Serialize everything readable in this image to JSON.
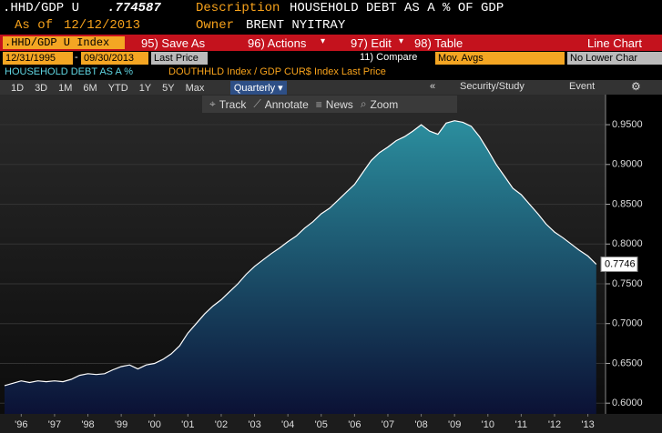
{
  "header": {
    "ticker": ".HHD/GDP U",
    "price": ".774587",
    "description_label": "Description",
    "description": "HOUSEHOLD DEBT AS A % OF GDP",
    "as_of_label": "As of",
    "as_of": "12/12/2013",
    "owner_label": "Owner",
    "owner": "BRENT NYITRAY"
  },
  "menu": {
    "security": ".HHD/GDP U Index",
    "items": [
      "95) Save As",
      "96) Actions",
      "97) Edit",
      "98) Table"
    ],
    "view": "Line Chart"
  },
  "settings": {
    "start": "12/31/1995",
    "separator": "-",
    "end": "09/30/2013",
    "field": "Last Price",
    "compare": "11) Compare",
    "mov_avgs": "Mov. Avgs",
    "lower": "No Lower Char"
  },
  "periods": [
    "1D",
    "3D",
    "1M",
    "6M",
    "YTD",
    "1Y",
    "5Y",
    "Max"
  ],
  "frequency": "Quarterly",
  "tools": [
    "Security/Study",
    "Event"
  ],
  "chart_tools": [
    "Track",
    "Annotate",
    "News",
    "Zoom"
  ],
  "chart_data": {
    "type": "area",
    "subtitle": "DOUTHHLD Index / GDP CUR$ Index Last Price",
    "x": [
      1996,
      1996.25,
      1996.5,
      1996.75,
      1997,
      1997.25,
      1997.5,
      1997.75,
      1998,
      1998.25,
      1998.5,
      1998.75,
      1999,
      1999.25,
      1999.5,
      1999.75,
      2000,
      2000.25,
      2000.5,
      2000.75,
      2001,
      2001.25,
      2001.5,
      2001.75,
      2002,
      2002.25,
      2002.5,
      2002.75,
      2003,
      2003.25,
      2003.5,
      2003.75,
      2004,
      2004.25,
      2004.5,
      2004.75,
      2005,
      2005.25,
      2005.5,
      2005.75,
      2006,
      2006.25,
      2006.5,
      2006.75,
      2007,
      2007.25,
      2007.5,
      2007.75,
      2008,
      2008.25,
      2008.5,
      2008.75,
      2009,
      2009.25,
      2009.5,
      2009.75,
      2010,
      2010.25,
      2010.5,
      2010.75,
      2011,
      2011.25,
      2011.5,
      2011.75,
      2012,
      2012.25,
      2012.5,
      2012.75,
      2013,
      2013.25,
      2013.5,
      2013.75
    ],
    "series": [
      {
        "name": "HOUSEHOLD DEBT AS A %",
        "color": "#2b8e9e",
        "line_color": "#ffffff",
        "values": [
          0.622,
          0.625,
          0.628,
          0.626,
          0.628,
          0.627,
          0.628,
          0.627,
          0.63,
          0.635,
          0.637,
          0.636,
          0.637,
          0.642,
          0.646,
          0.648,
          0.643,
          0.648,
          0.65,
          0.655,
          0.662,
          0.672,
          0.688,
          0.7,
          0.712,
          0.722,
          0.73,
          0.74,
          0.75,
          0.762,
          0.772,
          0.78,
          0.788,
          0.795,
          0.803,
          0.81,
          0.82,
          0.828,
          0.838,
          0.845,
          0.855,
          0.865,
          0.875,
          0.89,
          0.905,
          0.915,
          0.922,
          0.93,
          0.935,
          0.942,
          0.95,
          0.942,
          0.938,
          0.952,
          0.955,
          0.953,
          0.948,
          0.935,
          0.918,
          0.9,
          0.885,
          0.87,
          0.862,
          0.85,
          0.838,
          0.825,
          0.815,
          0.808,
          0.8,
          0.792,
          0.785,
          0.7746
        ]
      }
    ],
    "xlim": [
      1995.863,
      2014.03
    ],
    "xticks": [
      {
        "value": 1996.5,
        "label": "'96"
      },
      {
        "value": 1997.5,
        "label": "'97"
      },
      {
        "value": 1998.5,
        "label": "'98"
      },
      {
        "value": 1999.5,
        "label": "'99"
      },
      {
        "value": 2000.5,
        "label": "'00"
      },
      {
        "value": 2001.5,
        "label": "'01"
      },
      {
        "value": 2002.5,
        "label": "'02"
      },
      {
        "value": 2003.5,
        "label": "'03"
      },
      {
        "value": 2004.5,
        "label": "'04"
      },
      {
        "value": 2005.5,
        "label": "'05"
      },
      {
        "value": 2006.5,
        "label": "'06"
      },
      {
        "value": 2007.5,
        "label": "'07"
      },
      {
        "value": 2008.5,
        "label": "'08"
      },
      {
        "value": 2009.5,
        "label": "'09"
      },
      {
        "value": 2010.5,
        "label": "'10"
      },
      {
        "value": 2011.5,
        "label": "'11"
      },
      {
        "value": 2012.5,
        "label": "'12"
      },
      {
        "value": 2013.5,
        "label": "'13"
      }
    ],
    "ylim": [
      0.5865,
      0.9878
    ],
    "yticks": [
      {
        "value": 0.6,
        "label": "0.6000"
      },
      {
        "value": 0.65,
        "label": "0.6500"
      },
      {
        "value": 0.7,
        "label": "0.7000"
      },
      {
        "value": 0.75,
        "label": "0.7500"
      },
      {
        "value": 0.8,
        "label": "0.8000"
      },
      {
        "value": 0.85,
        "label": "0.8500"
      },
      {
        "value": 0.9,
        "label": "0.9000"
      },
      {
        "value": 0.95,
        "label": "0.9500"
      }
    ],
    "grid": true
  }
}
